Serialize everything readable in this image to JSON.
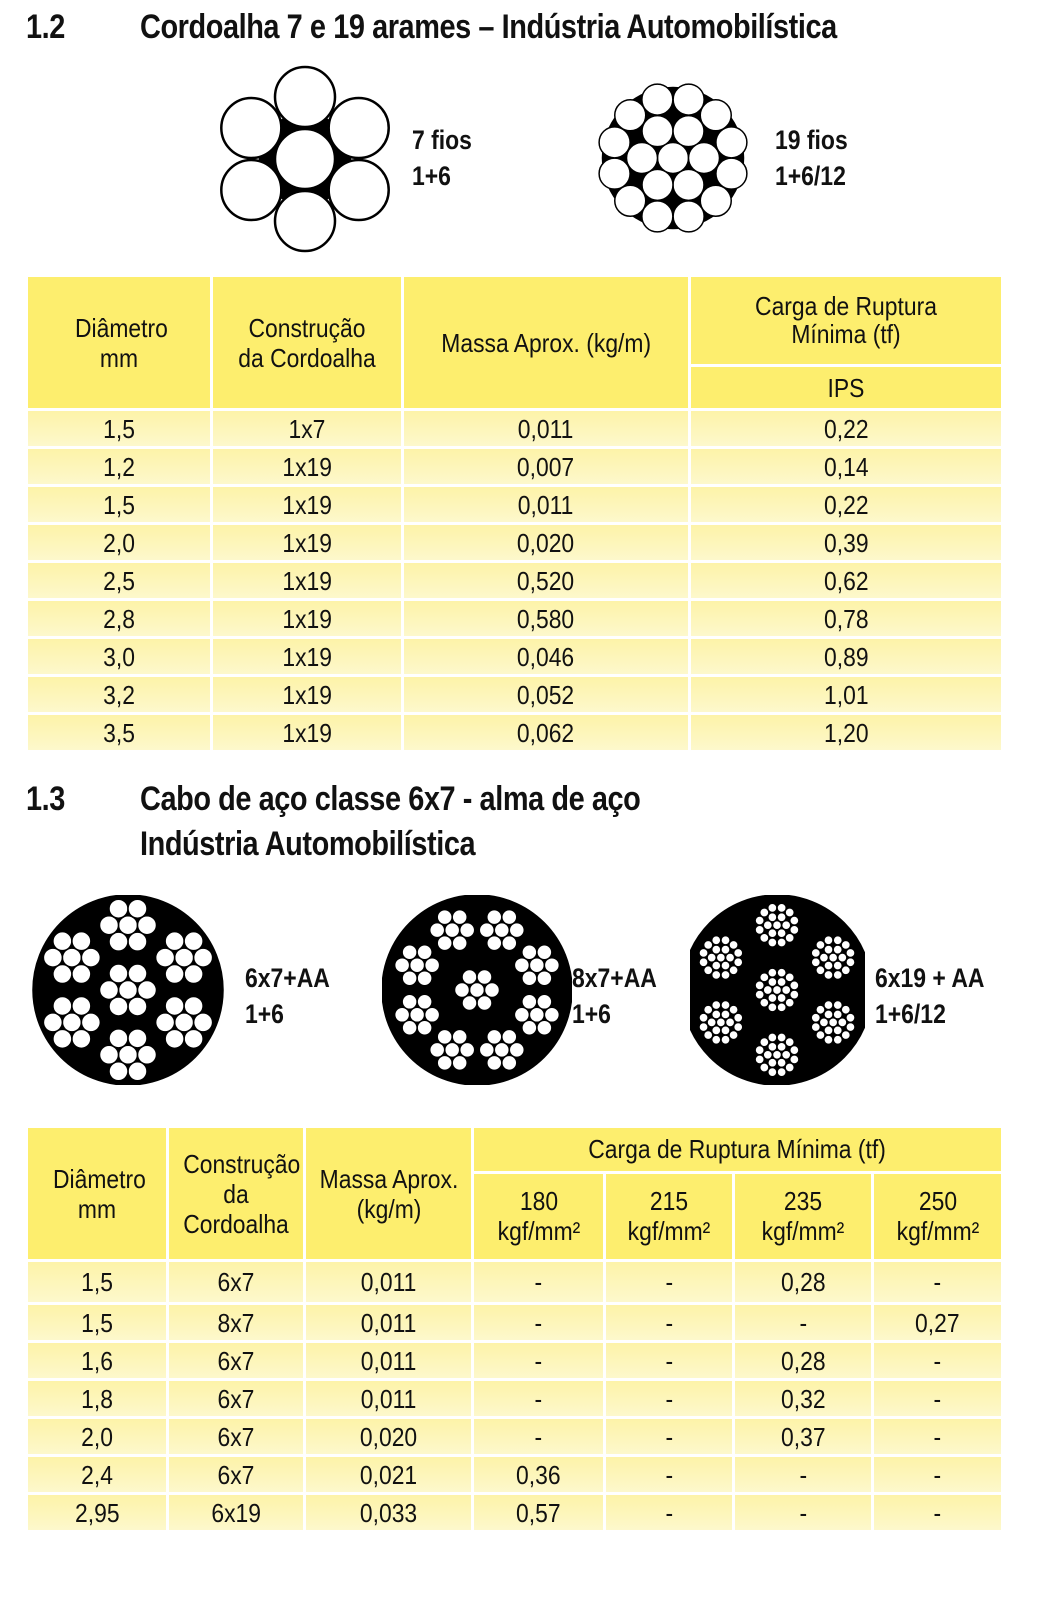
{
  "section12": {
    "number": "1.2",
    "title": "Cordoalha 7 e 19 arames – Indústria Automobilística",
    "diagrams": [
      {
        "name": "7 fios",
        "construction": "1+6"
      },
      {
        "name": "19 fios",
        "construction": "1+6/12"
      }
    ],
    "table": {
      "headers": {
        "diametro": "Diâmetro mm",
        "construcao": "Construção da Cordoalha",
        "massa": "Massa Aprox. (kg/m)",
        "carga": "Carga de Ruptura Mínima (tf)",
        "ips": "IPS"
      },
      "rows": [
        [
          "1,5",
          "1x7",
          "0,011",
          "0,22"
        ],
        [
          "1,2",
          "1x19",
          "0,007",
          "0,14"
        ],
        [
          "1,5",
          "1x19",
          "0,011",
          "0,22"
        ],
        [
          "2,0",
          "1x19",
          "0,020",
          "0,39"
        ],
        [
          "2,5",
          "1x19",
          "0,520",
          "0,62"
        ],
        [
          "2,8",
          "1x19",
          "0,580",
          "0,78"
        ],
        [
          "3,0",
          "1x19",
          "0,046",
          "0,89"
        ],
        [
          "3,2",
          "1x19",
          "0,052",
          "1,01"
        ],
        [
          "3,5",
          "1x19",
          "0,062",
          "1,20"
        ]
      ]
    }
  },
  "section13": {
    "number": "1.3",
    "title_line1": "Cabo de aço classe 6x7 - alma de aço",
    "title_line2": "Indústria Automobilística",
    "diagrams": [
      {
        "name": "6x7+AA",
        "construction": "1+6"
      },
      {
        "name": "8x7+AA",
        "construction": "1+6"
      },
      {
        "name": "6x19 + AA",
        "construction": "1+6/12"
      }
    ],
    "table": {
      "headers": {
        "diametro": "Diâmetro mm",
        "construcao": "Construção da Cordoalha",
        "massa": "Massa Aprox. (kg/m)",
        "carga": "Carga de Ruptura Mínima (tf)",
        "grades": [
          "180 kgf/mm²",
          "215 kgf/mm²",
          "235 kgf/mm²",
          "250 kgf/mm²"
        ]
      },
      "rows": [
        [
          "1,5",
          "6x7",
          "0,011",
          "-",
          "-",
          "0,28",
          "-"
        ],
        [
          "1,5",
          "8x7",
          "0,011",
          "-",
          "-",
          "-",
          "0,27"
        ],
        [
          "1,6",
          "6x7",
          "0,011",
          "-",
          "-",
          "0,28",
          "-"
        ],
        [
          "1,8",
          "6x7",
          "0,011",
          "-",
          "-",
          "0,32",
          "-"
        ],
        [
          "2,0",
          "6x7",
          "0,020",
          "-",
          "-",
          "0,37",
          "-"
        ],
        [
          "2,4",
          "6x7",
          "0,021",
          "0,36",
          "-",
          "-",
          "-"
        ],
        [
          "2,95",
          "6x19",
          "0,033",
          "0,57",
          "-",
          "-",
          "-"
        ]
      ]
    }
  }
}
